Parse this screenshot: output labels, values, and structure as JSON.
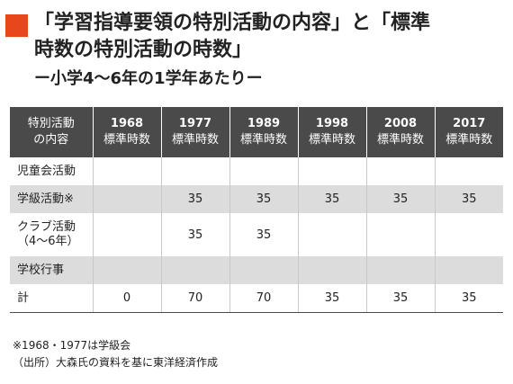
{
  "heading": {
    "line1": "「学習指導要領の特別活動の内容」と「標準",
    "line2": "時数の特別活動の時数」",
    "subtitle": "ー小学4〜6年の1学年あたりー",
    "accent_color": "#e8461b"
  },
  "table": {
    "corner": [
      "特別活動",
      "の内容"
    ],
    "columns": [
      {
        "year": "1968",
        "unit": "標準時数"
      },
      {
        "year": "1977",
        "unit": "標準時数"
      },
      {
        "year": "1989",
        "unit": "標準時数"
      },
      {
        "year": "1998",
        "unit": "標準時数"
      },
      {
        "year": "2008",
        "unit": "標準時数"
      },
      {
        "year": "2017",
        "unit": "標準時数"
      }
    ],
    "rows": [
      {
        "label": [
          "児童会活動",
          ""
        ],
        "values": [
          "",
          "",
          "",
          "",
          "",
          ""
        ]
      },
      {
        "label": [
          "学級活動※",
          ""
        ],
        "values": [
          "",
          "35",
          "35",
          "35",
          "35",
          "35"
        ]
      },
      {
        "label": [
          "クラブ活動",
          "（4〜6年）"
        ],
        "values": [
          "",
          "35",
          "35",
          "",
          "",
          ""
        ]
      },
      {
        "label": [
          "学校行事",
          ""
        ],
        "values": [
          "",
          "",
          "",
          "",
          "",
          ""
        ]
      },
      {
        "label": [
          "計",
          ""
        ],
        "values": [
          "0",
          "70",
          "70",
          "35",
          "35",
          "35"
        ]
      }
    ]
  },
  "notes": {
    "note1": "※1968・1977は学級会",
    "note2": "（出所）大森氏の資料を基に東洋経済作成"
  }
}
